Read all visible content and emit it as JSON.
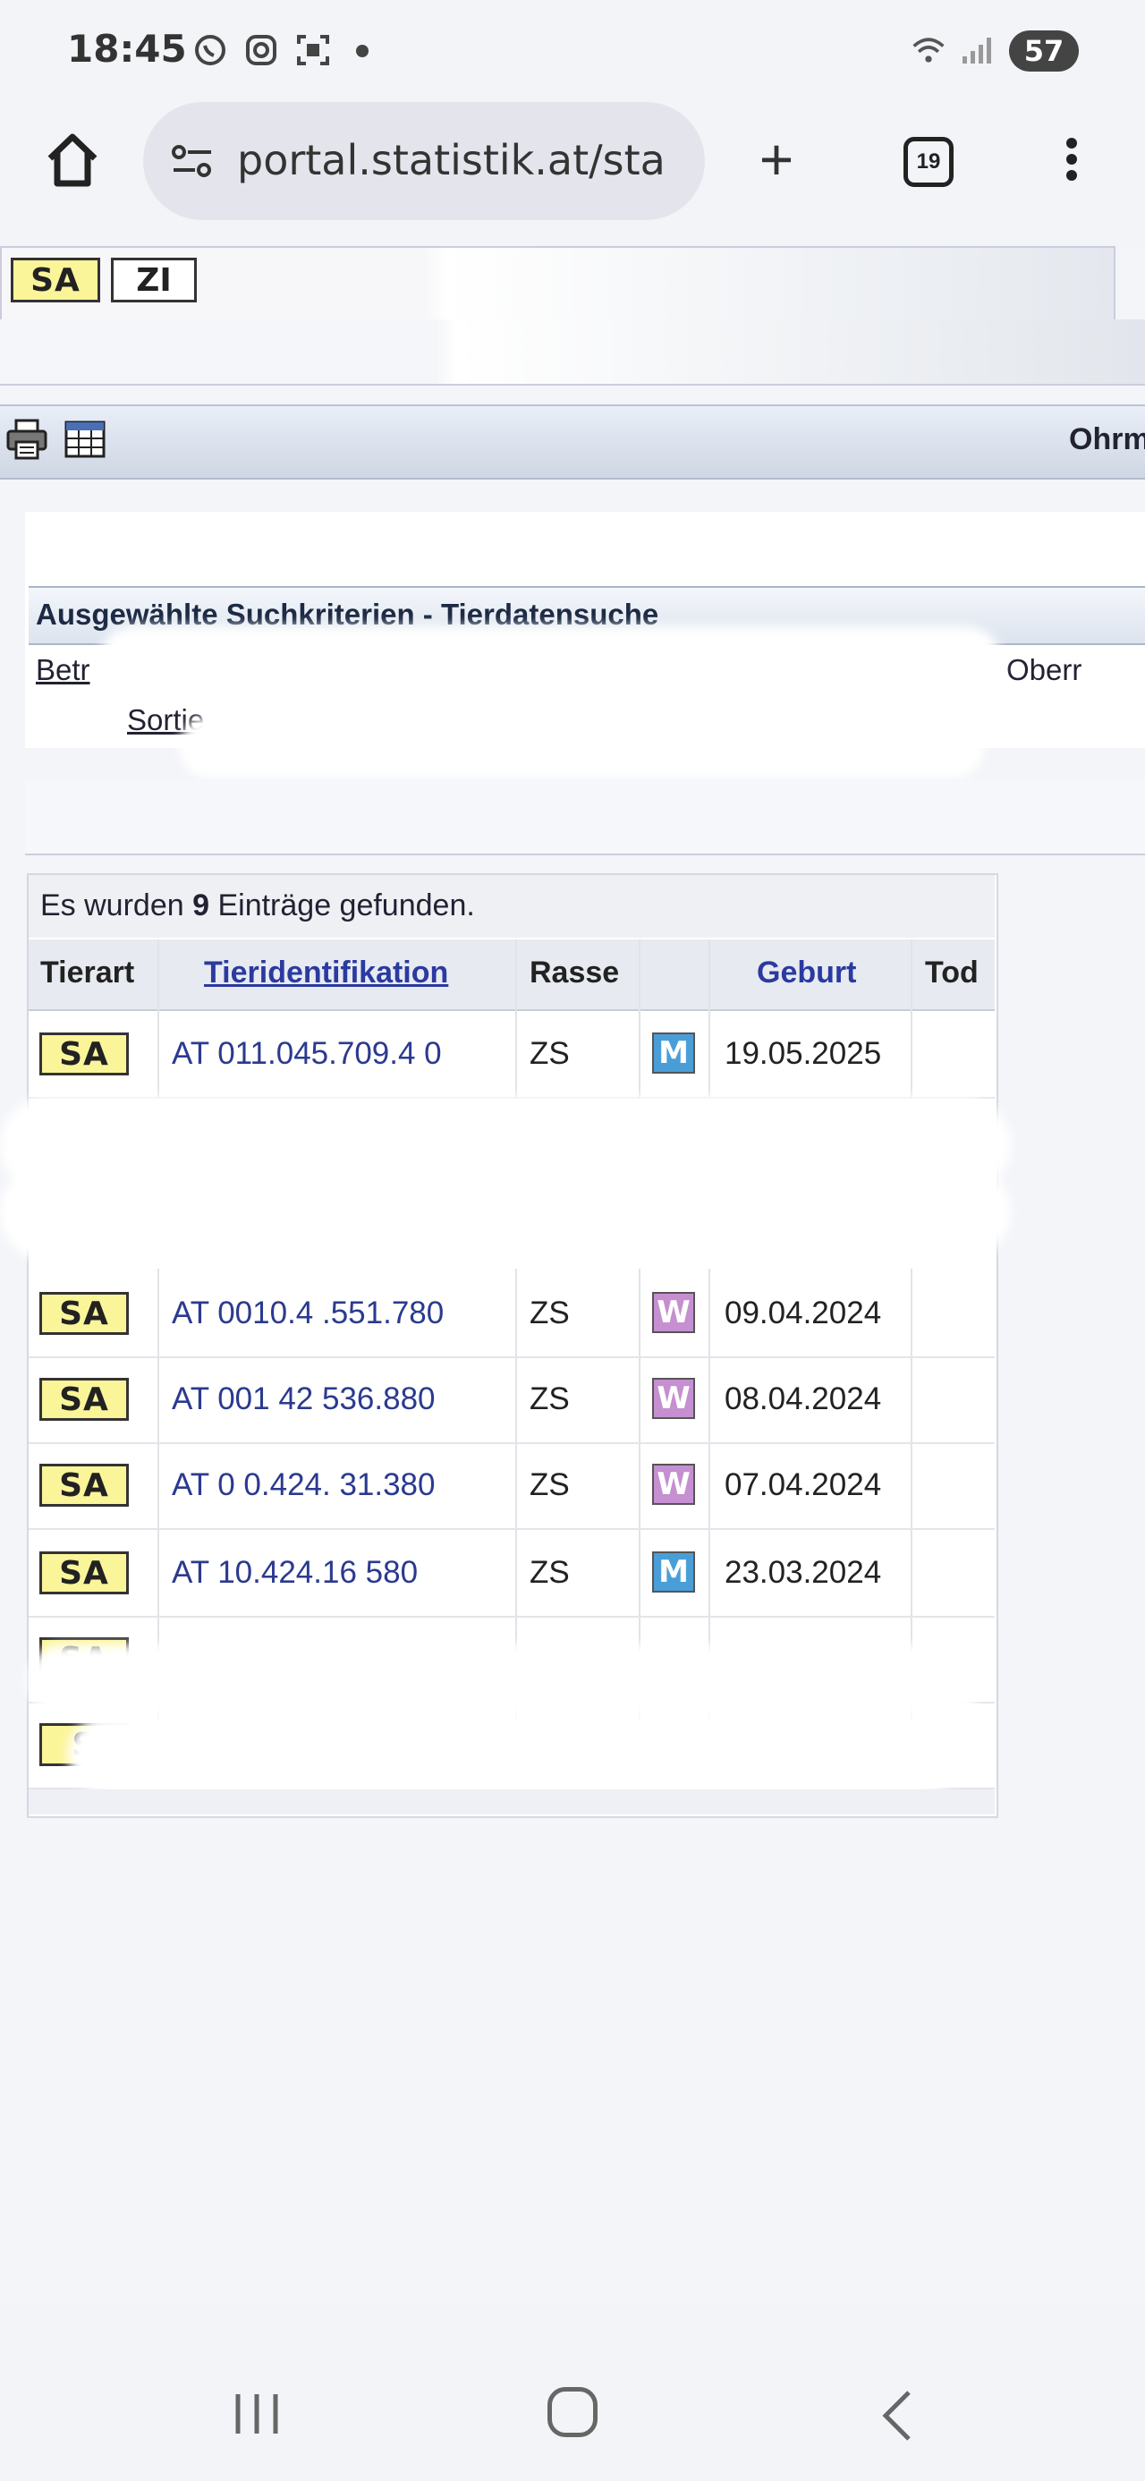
{
  "status_bar": {
    "time": "18:45",
    "icons": [
      "whatsapp-icon",
      "instagram-icon",
      "screenshot-icon",
      "notification-dot",
      "wifi-icon",
      "signal-icon"
    ],
    "battery": "57"
  },
  "browser": {
    "url": "portal.statistik.at/sta",
    "tabs_count": "19"
  },
  "top_tabs": {
    "sa": "SA",
    "zi": "ZI"
  },
  "toolbar": {
    "right_text": "Ohrm"
  },
  "criteria": {
    "title": "Ausgewählte Suchkriterien - Tierdatensuche",
    "betrieb_label": "Betr",
    "betrieb_value_end": "Oberr",
    "sortierung_label": "Sortie"
  },
  "results": {
    "found_prefix": "Es wurden ",
    "found_count": "9",
    "found_suffix": " Einträge gefunden.",
    "headers": {
      "tierart": "Tierart",
      "tieridentifikation": "Tieridentifikation",
      "rasse": "Rasse",
      "geburt": "Geburt",
      "tod": "Tod"
    },
    "rows": [
      {
        "tierart": "SA",
        "id": "AT  011.045.709.4  0",
        "rasse": "ZS",
        "sex": "M",
        "geburt": "19.05.2025",
        "tod": ""
      },
      {
        "tierart": "SA",
        "id": "AT 0010.4  .551.780",
        "rasse": "ZS",
        "sex": "W",
        "geburt": "09.04.2024",
        "tod": ""
      },
      {
        "tierart": "SA",
        "id": "AT 001   42   536.880",
        "rasse": "ZS",
        "sex": "W",
        "geburt": "08.04.2024",
        "tod": ""
      },
      {
        "tierart": "SA",
        "id": "AT 0   0.424.  31.380",
        "rasse": "ZS",
        "sex": "W",
        "geburt": "07.04.2024",
        "tod": ""
      },
      {
        "tierart": "SA",
        "id": "AT      10.424.16   580",
        "rasse": "ZS",
        "sex": "M",
        "geburt": "23.03.2024",
        "tod": ""
      },
      {
        "tierart": "SA"
      },
      {
        "tierart": "S"
      }
    ]
  },
  "colors": {
    "sa_badge": "#fbf59a",
    "male": "#4a9ed8",
    "female": "#c58fd0",
    "link": "#2b3aa0"
  }
}
